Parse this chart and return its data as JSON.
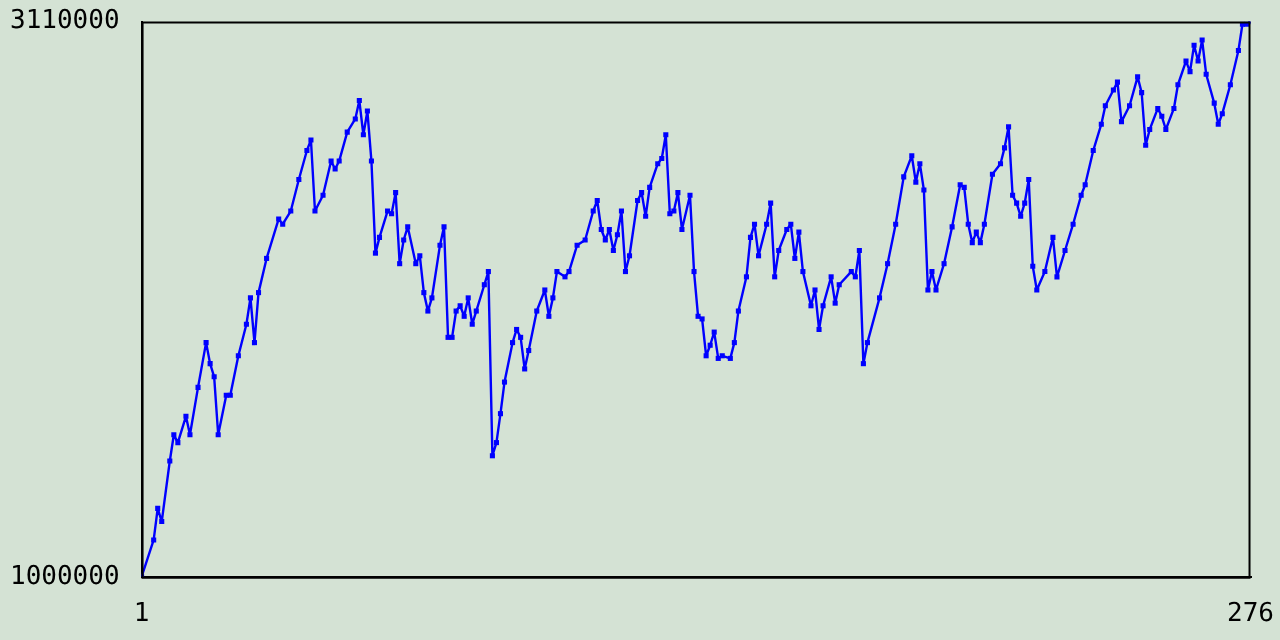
{
  "chart_data": {
    "type": "line",
    "xlim": [
      1,
      276
    ],
    "xticks": [
      1,
      276
    ],
    "ylim": [
      1000000,
      3110000
    ],
    "yticks": [
      1000000,
      3110000
    ],
    "grid": false,
    "legend": false,
    "marker": "square",
    "line_style": "solid",
    "series": [
      {
        "color": "#0000ff",
        "x": [
          1,
          4,
          5,
          6,
          8,
          9,
          10,
          12,
          13,
          15,
          17,
          18,
          19,
          20,
          22,
          23,
          25,
          27,
          28,
          29,
          30,
          32,
          35,
          36,
          38,
          40,
          42,
          43,
          44,
          46,
          48,
          49,
          50,
          52,
          54,
          55,
          56,
          57,
          58,
          59,
          60,
          62,
          63,
          64,
          65,
          66,
          67,
          69,
          70,
          71,
          72,
          73,
          75,
          76,
          77,
          78,
          79,
          80,
          81,
          82,
          83,
          84,
          86,
          87,
          88,
          89,
          90,
          91,
          93,
          94,
          95,
          96,
          97,
          99,
          101,
          102,
          103,
          104,
          106,
          107,
          109,
          111,
          113,
          114,
          115,
          116,
          117,
          118,
          119,
          120,
          121,
          122,
          124,
          125,
          126,
          127,
          129,
          130,
          131,
          132,
          133,
          134,
          135,
          137,
          138,
          139,
          140,
          141,
          142,
          143,
          144,
          145,
          147,
          148,
          149,
          151,
          152,
          153,
          154,
          156,
          157,
          158,
          159,
          161,
          162,
          163,
          164,
          165,
          167,
          168,
          169,
          170,
          172,
          173,
          174,
          177,
          178,
          179,
          180,
          181,
          184,
          186,
          188,
          190,
          192,
          193,
          194,
          195,
          196,
          197,
          198,
          200,
          202,
          204,
          205,
          206,
          207,
          208,
          209,
          210,
          212,
          214,
          215,
          216,
          217,
          218,
          219,
          220,
          221,
          222,
          223,
          225,
          227,
          228,
          230,
          232,
          234,
          235,
          237,
          239,
          240,
          242,
          243,
          244,
          246,
          248,
          249,
          250,
          251,
          253,
          254,
          255,
          257,
          258,
          260,
          261,
          262,
          263,
          264,
          265,
          267,
          268,
          269,
          271,
          273,
          274,
          275,
          276
        ],
        "values": [
          1000000,
          1140000,
          1260000,
          1210000,
          1440000,
          1540000,
          1510000,
          1610000,
          1540000,
          1720000,
          1890000,
          1810000,
          1760000,
          1540000,
          1690000,
          1690000,
          1840000,
          1960000,
          2060000,
          1890000,
          2080000,
          2210000,
          2360000,
          2340000,
          2390000,
          2510000,
          2620000,
          2660000,
          2390000,
          2450000,
          2580000,
          2550000,
          2580000,
          2690000,
          2740000,
          2810000,
          2680000,
          2770000,
          2580000,
          2230000,
          2290000,
          2390000,
          2380000,
          2460000,
          2190000,
          2280000,
          2330000,
          2190000,
          2220000,
          2080000,
          2010000,
          2060000,
          2260000,
          2330000,
          1910000,
          1910000,
          2010000,
          2030000,
          1990000,
          2060000,
          1960000,
          2010000,
          2110000,
          2160000,
          1460000,
          1510000,
          1620000,
          1740000,
          1890000,
          1940000,
          1910000,
          1790000,
          1860000,
          2010000,
          2090000,
          1990000,
          2060000,
          2160000,
          2140000,
          2160000,
          2260000,
          2280000,
          2390000,
          2430000,
          2320000,
          2280000,
          2320000,
          2240000,
          2300000,
          2390000,
          2160000,
          2220000,
          2430000,
          2460000,
          2370000,
          2480000,
          2570000,
          2590000,
          2680000,
          2380000,
          2390000,
          2460000,
          2320000,
          2450000,
          2160000,
          1990000,
          1980000,
          1840000,
          1880000,
          1930000,
          1830000,
          1840000,
          1830000,
          1890000,
          2010000,
          2140000,
          2290000,
          2340000,
          2220000,
          2340000,
          2420000,
          2140000,
          2240000,
          2320000,
          2340000,
          2210000,
          2310000,
          2160000,
          2030000,
          2090000,
          1940000,
          2030000,
          2140000,
          2040000,
          2110000,
          2160000,
          2140000,
          2240000,
          1810000,
          1890000,
          2060000,
          2190000,
          2340000,
          2520000,
          2600000,
          2500000,
          2570000,
          2470000,
          2090000,
          2160000,
          2090000,
          2190000,
          2330000,
          2490000,
          2480000,
          2340000,
          2270000,
          2310000,
          2270000,
          2340000,
          2530000,
          2570000,
          2630000,
          2710000,
          2450000,
          2420000,
          2370000,
          2420000,
          2510000,
          2180000,
          2090000,
          2160000,
          2290000,
          2140000,
          2240000,
          2340000,
          2450000,
          2490000,
          2620000,
          2720000,
          2790000,
          2850000,
          2880000,
          2730000,
          2790000,
          2900000,
          2840000,
          2640000,
          2700000,
          2780000,
          2750000,
          2700000,
          2780000,
          2870000,
          2960000,
          2920000,
          3020000,
          2960000,
          3040000,
          2910000,
          2800000,
          2720000,
          2760000,
          2870000,
          3000000,
          3100000,
          3100000,
          3110000
        ]
      }
    ]
  }
}
